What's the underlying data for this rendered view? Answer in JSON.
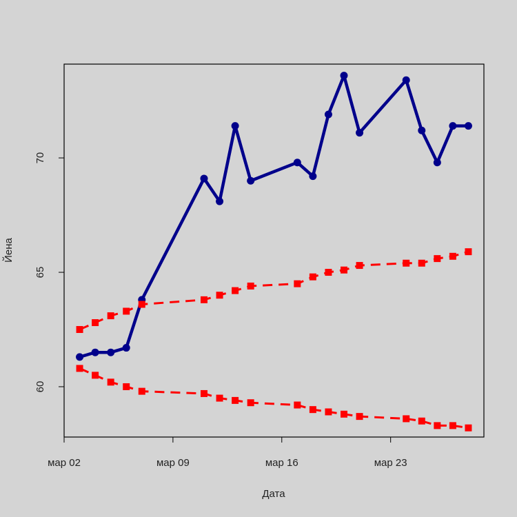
{
  "chart_data": {
    "type": "line",
    "xlabel": "Дата",
    "ylabel": "Йена",
    "x_ticks": [
      {
        "value": "2021-03-02",
        "label": "мар 02"
      },
      {
        "value": "2021-03-09",
        "label": "мар 09"
      },
      {
        "value": "2021-03-16",
        "label": "мар 16"
      },
      {
        "value": "2021-03-23",
        "label": "мар 23"
      }
    ],
    "y_ticks": [
      60,
      65,
      70
    ],
    "xlim": [
      "2021-03-02",
      "2021-03-29"
    ],
    "ylim": [
      57.8,
      74.1
    ],
    "grid": false,
    "series": [
      {
        "color": "#00008b",
        "style": "solid",
        "marker": "circle",
        "points": [
          {
            "x": "2021-03-03",
            "y": 61.3
          },
          {
            "x": "2021-03-04",
            "y": 61.5
          },
          {
            "x": "2021-03-05",
            "y": 61.5
          },
          {
            "x": "2021-03-06",
            "y": 61.7
          },
          {
            "x": "2021-03-07",
            "y": 63.8
          },
          {
            "x": "2021-03-11",
            "y": 69.1
          },
          {
            "x": "2021-03-12",
            "y": 68.1
          },
          {
            "x": "2021-03-13",
            "y": 71.4
          },
          {
            "x": "2021-03-14",
            "y": 69.0
          },
          {
            "x": "2021-03-17",
            "y": 69.8
          },
          {
            "x": "2021-03-18",
            "y": 69.2
          },
          {
            "x": "2021-03-19",
            "y": 71.9
          },
          {
            "x": "2021-03-20",
            "y": 73.6
          },
          {
            "x": "2021-03-21",
            "y": 71.1
          },
          {
            "x": "2021-03-24",
            "y": 73.4
          },
          {
            "x": "2021-03-25",
            "y": 71.2
          },
          {
            "x": "2021-03-26",
            "y": 69.8
          },
          {
            "x": "2021-03-27",
            "y": 71.4
          },
          {
            "x": "2021-03-28",
            "y": 71.4
          }
        ]
      },
      {
        "color": "#ff0000",
        "style": "dashed",
        "marker": "square",
        "points": [
          {
            "x": "2021-03-03",
            "y": 62.5
          },
          {
            "x": "2021-03-04",
            "y": 62.8
          },
          {
            "x": "2021-03-05",
            "y": 63.1
          },
          {
            "x": "2021-03-06",
            "y": 63.3
          },
          {
            "x": "2021-03-07",
            "y": 63.6
          },
          {
            "x": "2021-03-11",
            "y": 63.8
          },
          {
            "x": "2021-03-12",
            "y": 64.0
          },
          {
            "x": "2021-03-13",
            "y": 64.2
          },
          {
            "x": "2021-03-14",
            "y": 64.4
          },
          {
            "x": "2021-03-17",
            "y": 64.5
          },
          {
            "x": "2021-03-18",
            "y": 64.8
          },
          {
            "x": "2021-03-19",
            "y": 65.0
          },
          {
            "x": "2021-03-20",
            "y": 65.1
          },
          {
            "x": "2021-03-21",
            "y": 65.3
          },
          {
            "x": "2021-03-24",
            "y": 65.4
          },
          {
            "x": "2021-03-25",
            "y": 65.4
          },
          {
            "x": "2021-03-26",
            "y": 65.6
          },
          {
            "x": "2021-03-27",
            "y": 65.7
          },
          {
            "x": "2021-03-28",
            "y": 65.9
          }
        ]
      },
      {
        "color": "#ff0000",
        "style": "dashed",
        "marker": "square",
        "points": [
          {
            "x": "2021-03-03",
            "y": 60.8
          },
          {
            "x": "2021-03-04",
            "y": 60.5
          },
          {
            "x": "2021-03-05",
            "y": 60.2
          },
          {
            "x": "2021-03-06",
            "y": 60.0
          },
          {
            "x": "2021-03-07",
            "y": 59.8
          },
          {
            "x": "2021-03-11",
            "y": 59.7
          },
          {
            "x": "2021-03-12",
            "y": 59.5
          },
          {
            "x": "2021-03-13",
            "y": 59.4
          },
          {
            "x": "2021-03-14",
            "y": 59.3
          },
          {
            "x": "2021-03-17",
            "y": 59.2
          },
          {
            "x": "2021-03-18",
            "y": 59.0
          },
          {
            "x": "2021-03-19",
            "y": 58.9
          },
          {
            "x": "2021-03-20",
            "y": 58.8
          },
          {
            "x": "2021-03-21",
            "y": 58.7
          },
          {
            "x": "2021-03-24",
            "y": 58.6
          },
          {
            "x": "2021-03-25",
            "y": 58.5
          },
          {
            "x": "2021-03-26",
            "y": 58.3
          },
          {
            "x": "2021-03-27",
            "y": 58.3
          },
          {
            "x": "2021-03-28",
            "y": 58.2
          }
        ]
      }
    ]
  }
}
